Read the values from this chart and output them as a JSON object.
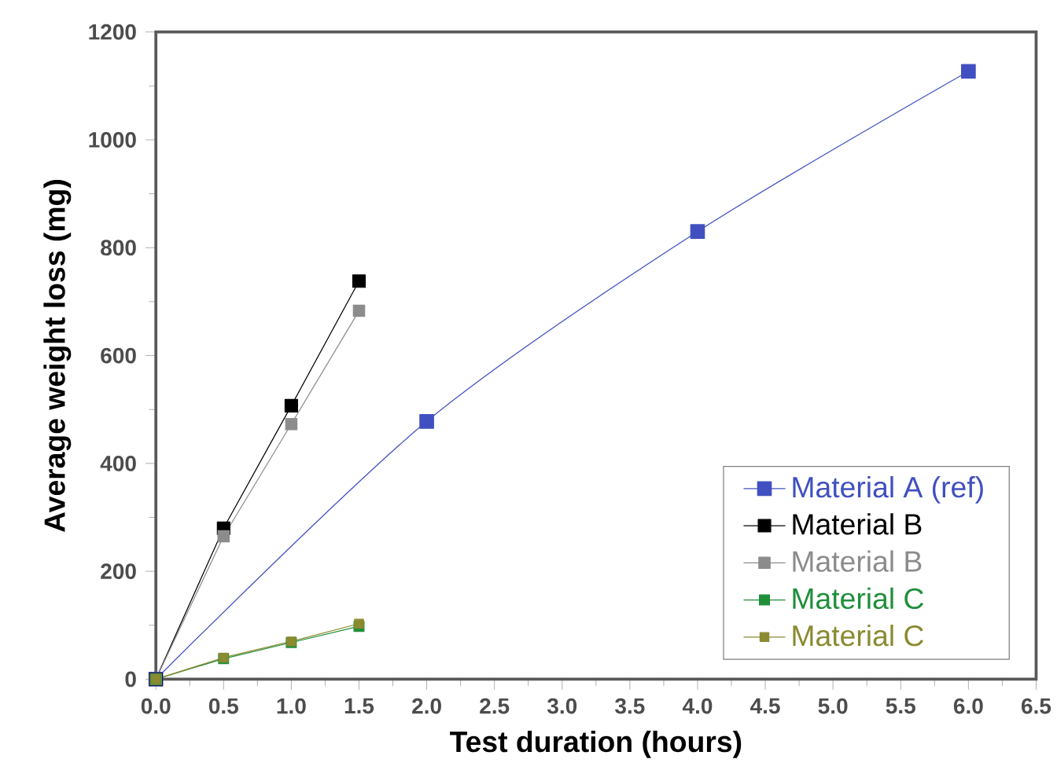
{
  "chart_data": {
    "type": "line",
    "xlabel": "Test duration (hours)",
    "ylabel": "Average weight loss (mg)",
    "xlim": [
      0,
      6.5
    ],
    "ylim": [
      0,
      1200
    ],
    "xticks": [
      {
        "value": 0,
        "label": "0.0"
      },
      0.5,
      {
        "value": 1,
        "label": "1.0"
      },
      1.5,
      {
        "value": 2,
        "label": "2.0"
      },
      2.5,
      {
        "value": 3,
        "label": "3.0"
      },
      3.5,
      {
        "value": 4,
        "label": "4.0"
      },
      4.5,
      {
        "value": 5,
        "label": "5.0"
      },
      5.5,
      {
        "value": 6,
        "label": "6.0"
      },
      6.5
    ],
    "yticks": [
      0,
      200,
      400,
      600,
      800,
      1000,
      1200
    ],
    "marker": "square",
    "legend": "bottom right",
    "grid": false,
    "series": [
      {
        "name": "Material A (ref)",
        "color": "#4050c0",
        "x": [
          0,
          2,
          4,
          6
        ],
        "values": [
          0,
          478,
          830,
          1127
        ]
      },
      {
        "name": "Material B",
        "color": "#000000",
        "x": [
          0,
          0.5,
          1,
          1.5
        ],
        "values": [
          0,
          280,
          507,
          738
        ]
      },
      {
        "name": "Material B",
        "color": "#8c8c8c",
        "x": [
          0,
          0.5,
          1,
          1.5
        ],
        "values": [
          0,
          265,
          473,
          683
        ]
      },
      {
        "name": "Material C",
        "color": "#1f8f3a",
        "x": [
          0,
          0.5,
          1,
          1.5
        ],
        "values": [
          0,
          38,
          68,
          98
        ]
      },
      {
        "name": "Material C",
        "color": "#8a8a30",
        "x": [
          0,
          0.5,
          1,
          1.5
        ],
        "values": [
          0,
          40,
          70,
          103
        ]
      }
    ]
  }
}
